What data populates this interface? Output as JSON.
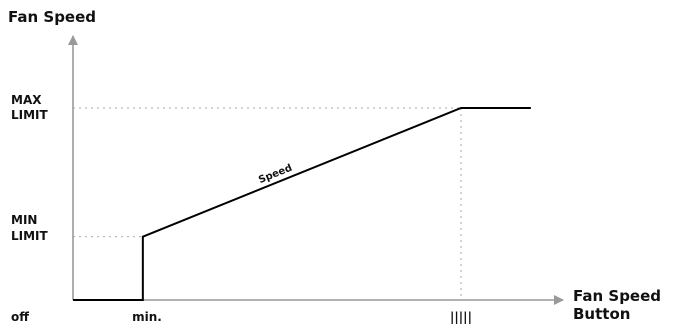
{
  "chart_data": {
    "type": "line",
    "ylabel": "Fan Speed",
    "xlabel_lines": [
      "Fan Speed",
      "Button"
    ],
    "y_tick_labels": {
      "max_limit": [
        "MAX",
        "LIMIT"
      ],
      "min_limit": [
        "MIN",
        "LIMIT"
      ],
      "off": "off"
    },
    "x_tick_labels": {
      "min": "min.",
      "max": "|||||"
    },
    "series": [
      {
        "name": "Speed",
        "points": [
          {
            "x": 0,
            "y": 0
          },
          {
            "x": 0.18,
            "y": 0
          },
          {
            "x": 0.18,
            "y": 0.33
          },
          {
            "x": 1,
            "y": 1
          },
          {
            "x": 1.18,
            "y": 1
          }
        ]
      }
    ],
    "reference_levels": {
      "x_min": 0.18,
      "x_max": 1,
      "y_min_limit": 0.33,
      "y_max_limit": 1
    },
    "grid": false,
    "colors": {
      "axis": "#999999",
      "curve": "#000000",
      "guide": "#bbbbbb",
      "text": "#111111"
    }
  }
}
